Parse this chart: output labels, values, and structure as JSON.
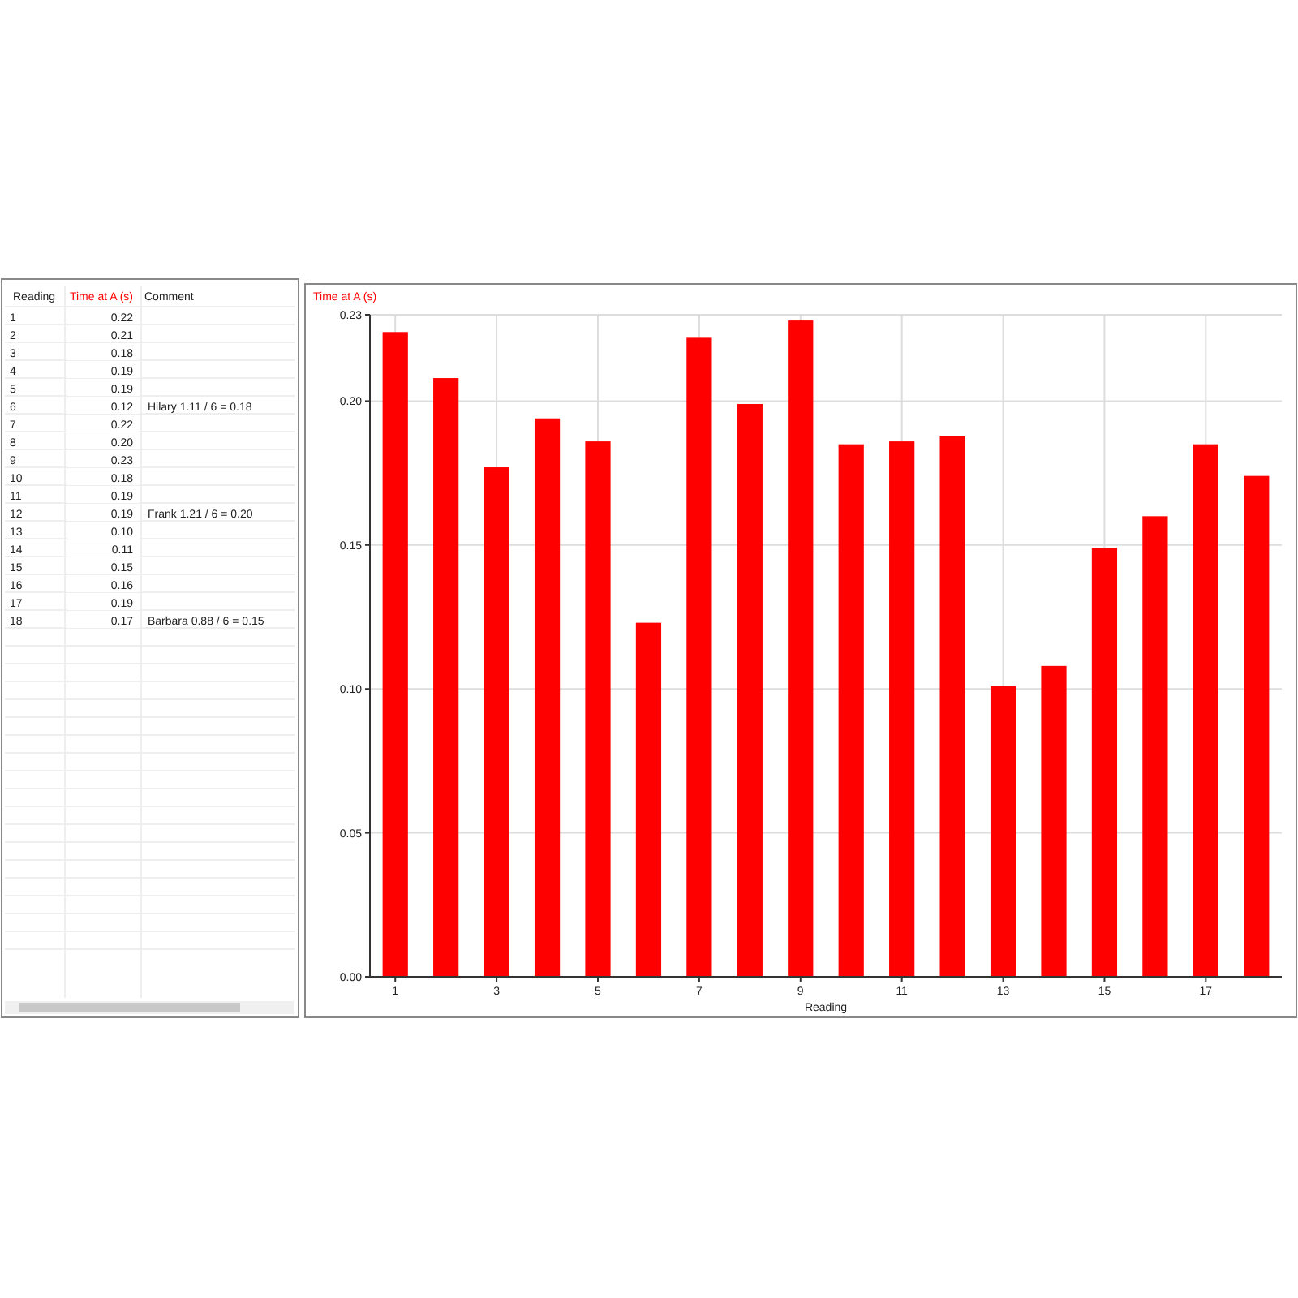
{
  "chart_data": [
    {
      "type": "heatmap",
      "ylabel": "Reading",
      "categories": [
        "Time at A (s)",
        "Comment"
      ],
      "colors": [
        "#ff0000",
        "#222222"
      ],
      "y_categories": [
        "1",
        "2",
        "3",
        "4",
        "5",
        "6",
        "7",
        "8",
        "9",
        "10",
        "11",
        "12",
        "13",
        "14",
        "15",
        "16",
        "17",
        "18"
      ],
      "cells": [
        [
          null,
          null
        ],
        [
          null,
          null
        ],
        [
          null,
          null
        ],
        [
          null,
          null
        ],
        [
          null,
          null
        ],
        [
          null,
          null
        ],
        [
          null,
          null
        ],
        [
          null,
          null
        ],
        [
          null,
          null
        ],
        [
          null,
          null
        ],
        [
          null,
          null
        ],
        [
          null,
          null
        ],
        [
          null,
          null
        ],
        [
          null,
          null
        ],
        [
          null,
          null
        ],
        [
          null,
          null
        ],
        [
          null,
          null
        ],
        [
          null,
          null
        ]
      ],
      "cell_labels": [
        [
          "0.22",
          null
        ],
        [
          "0.21",
          null
        ],
        [
          "0.18",
          null
        ],
        [
          "0.19",
          null
        ],
        [
          "0.19",
          null
        ],
        [
          "0.12",
          "Hilary  1.11 / 6 = 0.18"
        ],
        [
          "0.22",
          null
        ],
        [
          "0.20",
          null
        ],
        [
          "0.23",
          null
        ],
        [
          "0.18",
          null
        ],
        [
          "0.19",
          null
        ],
        [
          "0.19",
          "Frank  1.21 / 6 = 0.20"
        ],
        [
          "0.10",
          null
        ],
        [
          "0.11",
          null
        ],
        [
          "0.15",
          null
        ],
        [
          "0.16",
          null
        ],
        [
          "0.19",
          null
        ],
        [
          "0.17",
          "Barbara 0.88 / 6 = 0.15"
        ]
      ]
    },
    {
      "type": "bar",
      "xlabel": "Reading",
      "ylabel": "Time at A (s)",
      "x": [
        1,
        2,
        3,
        4,
        5,
        6,
        7,
        8,
        9,
        10,
        11,
        12,
        13,
        14,
        15,
        16,
        17,
        18
      ],
      "values": [
        0.224,
        0.208,
        0.177,
        0.194,
        0.186,
        0.123,
        0.222,
        0.199,
        0.228,
        0.185,
        0.186,
        0.188,
        0.101,
        0.108,
        0.149,
        0.16,
        0.185,
        0.174
      ],
      "color": "#ff0000",
      "xlim": [
        0.5,
        18.5
      ],
      "xticks": [
        1,
        3,
        5,
        7,
        9,
        11,
        13,
        15,
        17
      ],
      "ylim": [
        0,
        0.23
      ],
      "yticks": [
        {
          "value": 0,
          "label": "0.00"
        },
        0.05,
        {
          "value": 0.1,
          "label": "0.10"
        },
        0.15,
        {
          "value": 0.2,
          "label": "0.20"
        },
        0.23
      ],
      "grid": true
    }
  ]
}
